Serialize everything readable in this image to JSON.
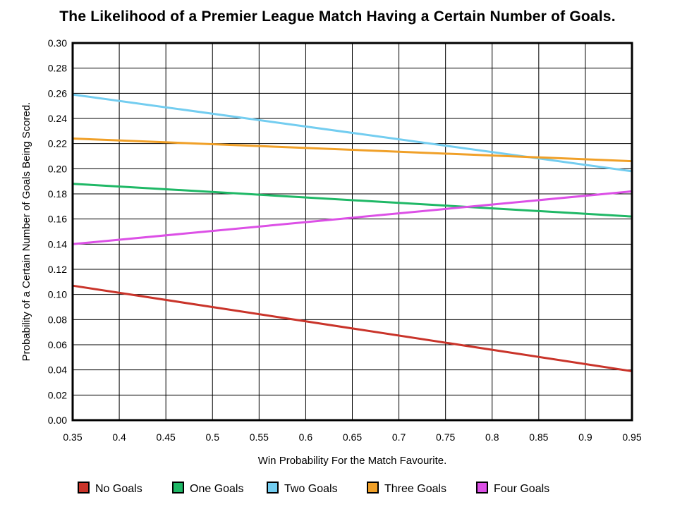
{
  "chart_data": {
    "type": "line",
    "title": "The Likelihood of a Premier League Match Having a Certain Number of Goals.",
    "xlabel": "Win Probability For the Match Favourite.",
    "ylabel": "Probability of a Certain Number of Goals Being Scored.",
    "xlim": [
      0.35,
      0.95
    ],
    "ylim": [
      0.0,
      0.3
    ],
    "x_ticks": [
      "0.35",
      "0.4",
      "0.45",
      "0.5",
      "0.55",
      "0.6",
      "0.65",
      "0.7",
      "0.75",
      "0.8",
      "0.85",
      "0.9",
      "0.95"
    ],
    "y_ticks": [
      "0.00",
      "0.02",
      "0.04",
      "0.06",
      "0.08",
      "0.10",
      "0.12",
      "0.14",
      "0.16",
      "0.18",
      "0.20",
      "0.22",
      "0.24",
      "0.26",
      "0.28",
      "0.30"
    ],
    "grid": true,
    "legend_position": "bottom",
    "series": [
      {
        "name": "No Goals",
        "color": "#c9342a",
        "x": [
          0.35,
          0.95
        ],
        "y": [
          0.107,
          0.039
        ]
      },
      {
        "name": "One Goals",
        "color": "#1fb866",
        "x": [
          0.35,
          0.95
        ],
        "y": [
          0.188,
          0.162
        ]
      },
      {
        "name": "Two Goals",
        "color": "#73cdf0",
        "x": [
          0.35,
          0.95
        ],
        "y": [
          0.259,
          0.198
        ]
      },
      {
        "name": "Three Goals",
        "color": "#f0a028",
        "x": [
          0.35,
          0.95
        ],
        "y": [
          0.224,
          0.206
        ]
      },
      {
        "name": "Four Goals",
        "color": "#dc50e6",
        "x": [
          0.35,
          0.95
        ],
        "y": [
          0.14,
          0.182
        ]
      }
    ]
  }
}
